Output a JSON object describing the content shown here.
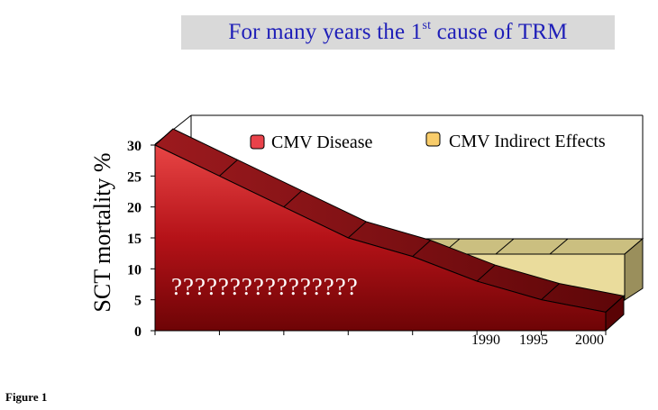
{
  "banner": {
    "text_before": "For many years the 1",
    "superscript": "st",
    "text_after": " cause of TRM"
  },
  "figure_label": "Figure 1",
  "chart_data": {
    "type": "area",
    "ylabel": "SCT mortality %",
    "ylim": [
      0,
      30
    ],
    "y_ticks": [
      "0",
      "5",
      "10",
      "15",
      "20",
      "25",
      "30"
    ],
    "x_tick_labels": [
      "1990",
      "1995",
      "2000"
    ],
    "legend_position": "top-right",
    "series": [
      {
        "name": "CMV Disease",
        "color": "#c0181e",
        "x_index": [
          0,
          1,
          2,
          3,
          4,
          5,
          6,
          7
        ],
        "values": [
          30,
          25,
          20,
          15,
          12,
          8,
          5,
          3
        ]
      },
      {
        "name": "CMV Indirect Effects",
        "color": "#eadc9c",
        "x_index": [
          4,
          5,
          6,
          7
        ],
        "values": [
          12,
          12,
          12,
          12
        ]
      }
    ],
    "annotation": "????????????????"
  },
  "colors": {
    "banner_text": "#1f1fb8",
    "banner_bg": "#d9d9d9",
    "disease_front": "#c0181e",
    "disease_top": "#8c0f12",
    "indirect_top": "#cbbf80",
    "indirect_front": "#eadc9c",
    "indirect_side": "#9a8f5c"
  }
}
